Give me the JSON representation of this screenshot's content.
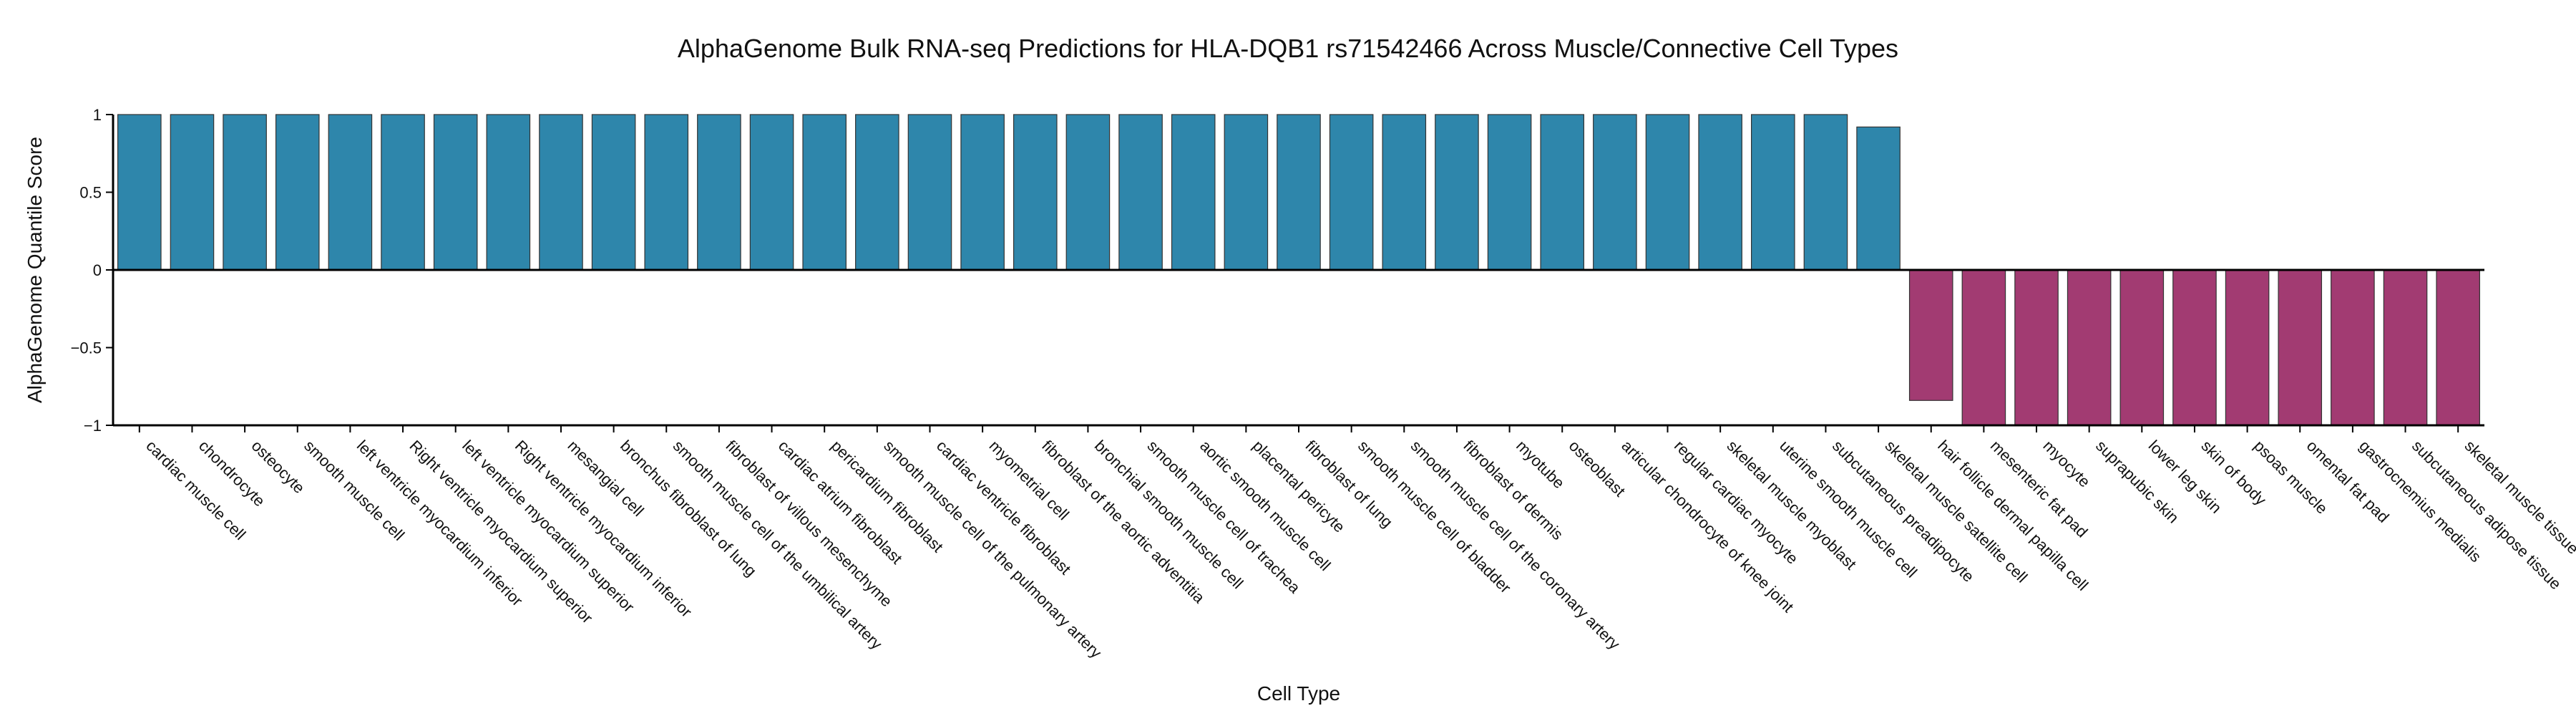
{
  "chart_data": {
    "type": "bar",
    "title": "AlphaGenome Bulk RNA-seq Predictions for HLA-DQB1 rs71542466 Across Muscle/Connective Cell Types",
    "xlabel": "Cell Type",
    "ylabel": "AlphaGenome Quantile Score",
    "ylim": [
      -1,
      1
    ],
    "yticks": [
      {
        "value": 1,
        "label": "1"
      },
      {
        "value": 0.5,
        "label": "0.5"
      },
      {
        "value": 0,
        "label": "0"
      },
      {
        "value": -0.5,
        "label": "−0.5"
      },
      {
        "value": -1,
        "label": "−1"
      }
    ],
    "grid": false,
    "colors": {
      "positive": "#2e86ab",
      "negative": "#a23b72"
    },
    "categories": [
      "cardiac muscle cell",
      "chondrocyte",
      "osteocyte",
      "smooth muscle cell",
      "left ventricle myocardium inferior",
      "Right ventricle myocardium superior",
      "left ventricle myocardium superior",
      "Right ventricle myocardium inferior",
      "mesangial cell",
      "bronchus fibroblast of lung",
      "smooth muscle cell of the umbilical artery",
      "fibroblast of villous mesenchyme",
      "cardiac atrium fibroblast",
      "pericardium fibroblast",
      "smooth muscle cell of the pulmonary artery",
      "cardiac ventricle fibroblast",
      "myometrial cell",
      "fibroblast of the aortic adventitia",
      "bronchial smooth muscle cell",
      "smooth muscle cell of trachea",
      "aortic smooth muscle cell",
      "placental pericyte",
      "fibroblast of lung",
      "smooth muscle cell of bladder",
      "smooth muscle cell of the coronary artery",
      "fibroblast of dermis",
      "myotube",
      "osteoblast",
      "articular chondrocyte of knee joint",
      "regular cardiac myocyte",
      "skeletal muscle myoblast",
      "uterine smooth muscle cell",
      "subcutaneous preadipocyte",
      "skeletal muscle satellite cell",
      "hair follicle dermal papilla cell",
      "mesenteric fat pad",
      "myocyte",
      "suprapubic skin",
      "lower leg skin",
      "skin of body",
      "psoas muscle",
      "omental fat pad",
      "gastrocnemius medialis",
      "subcutaneous adipose tissue",
      "skeletal muscle tissue"
    ],
    "values": [
      1,
      1,
      1,
      1,
      1,
      1,
      1,
      1,
      1,
      1,
      1,
      1,
      1,
      1,
      1,
      1,
      1,
      1,
      1,
      1,
      1,
      1,
      1,
      1,
      1,
      1,
      1,
      1,
      1,
      1,
      1,
      1,
      1,
      0.92,
      -0.84,
      -1,
      -1,
      -1,
      -1,
      -1,
      -1,
      -1,
      -1,
      -1,
      -1
    ]
  }
}
